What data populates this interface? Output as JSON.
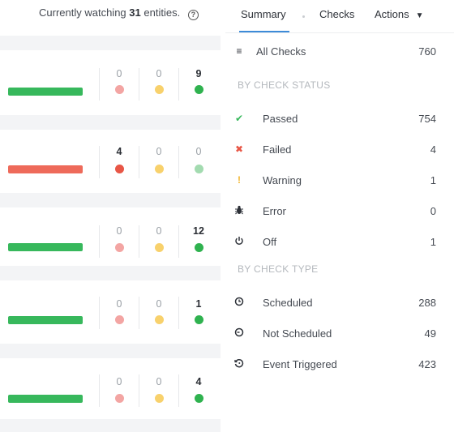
{
  "status_line": {
    "prefix": "Currently watching",
    "count": "31",
    "suffix": "entities."
  },
  "entities": [
    {
      "bar_status": "passing",
      "failed": "0",
      "warning": "0",
      "passed": "9"
    },
    {
      "bar_status": "failing",
      "failed": "4",
      "warning": "0",
      "passed": "0"
    },
    {
      "bar_status": "passing",
      "failed": "0",
      "warning": "0",
      "passed": "12"
    },
    {
      "bar_status": "passing",
      "failed": "0",
      "warning": "0",
      "passed": "1"
    },
    {
      "bar_status": "passing",
      "failed": "0",
      "warning": "0",
      "passed": "4"
    }
  ],
  "tabs": {
    "summary": "Summary",
    "checks": "Checks",
    "actions": "Actions"
  },
  "all_checks": {
    "label": "All Checks",
    "count": "760"
  },
  "section_status": "BY CHECK STATUS",
  "status_rows": [
    {
      "label": "Passed",
      "count": "754",
      "icon": "check-icon"
    },
    {
      "label": "Failed",
      "count": "4",
      "icon": "x-icon"
    },
    {
      "label": "Warning",
      "count": "1",
      "icon": "exclamation-icon"
    },
    {
      "label": "Error",
      "count": "0",
      "icon": "bug-icon"
    },
    {
      "label": "Off",
      "count": "1",
      "icon": "power-icon"
    }
  ],
  "section_type": "BY CHECK TYPE",
  "type_rows": [
    {
      "label": "Scheduled",
      "count": "288",
      "icon": "clock-icon"
    },
    {
      "label": "Not Scheduled",
      "count": "49",
      "icon": "clock-off-icon"
    },
    {
      "label": "Event Triggered",
      "count": "423",
      "icon": "clock-trigger-icon"
    }
  ],
  "colors": {
    "passed": "#37b85c",
    "failed": "#e85646",
    "warning": "#f8d16c",
    "tab_accent": "#3d8bd8"
  }
}
